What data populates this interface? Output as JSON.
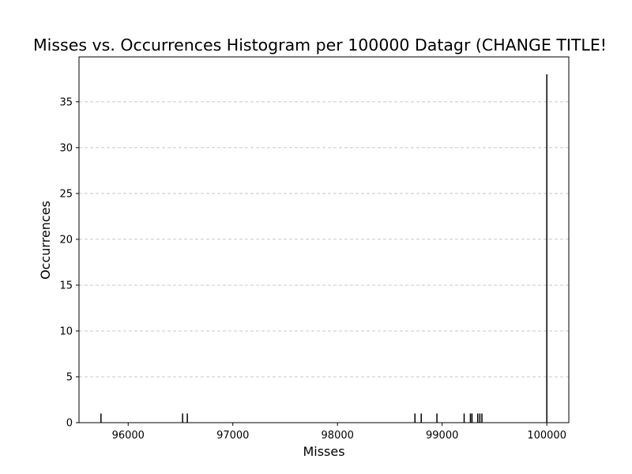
{
  "chart_data": {
    "type": "bar",
    "title": "Misses vs. Occurrences Histogram per 100000 Datagr (CHANGE TITLE!",
    "xlabel": "Misses",
    "ylabel": "Occurrences",
    "xlim": [
      95530,
      100210
    ],
    "ylim": [
      0,
      39.9
    ],
    "xticks": [
      96000,
      97000,
      98000,
      99000,
      100000
    ],
    "yticks": [
      0,
      5,
      10,
      15,
      20,
      25,
      30,
      35
    ],
    "grid": "y",
    "bar_color": "#000000",
    "gridline_color": "#c8c8c8",
    "x": [
      95740,
      96520,
      96565,
      98740,
      98800,
      98950,
      99210,
      99270,
      99285,
      99340,
      99360,
      99380,
      100000
    ],
    "values": [
      1,
      1,
      1,
      1,
      1,
      1,
      1,
      1,
      1,
      1,
      1,
      1,
      38
    ]
  }
}
